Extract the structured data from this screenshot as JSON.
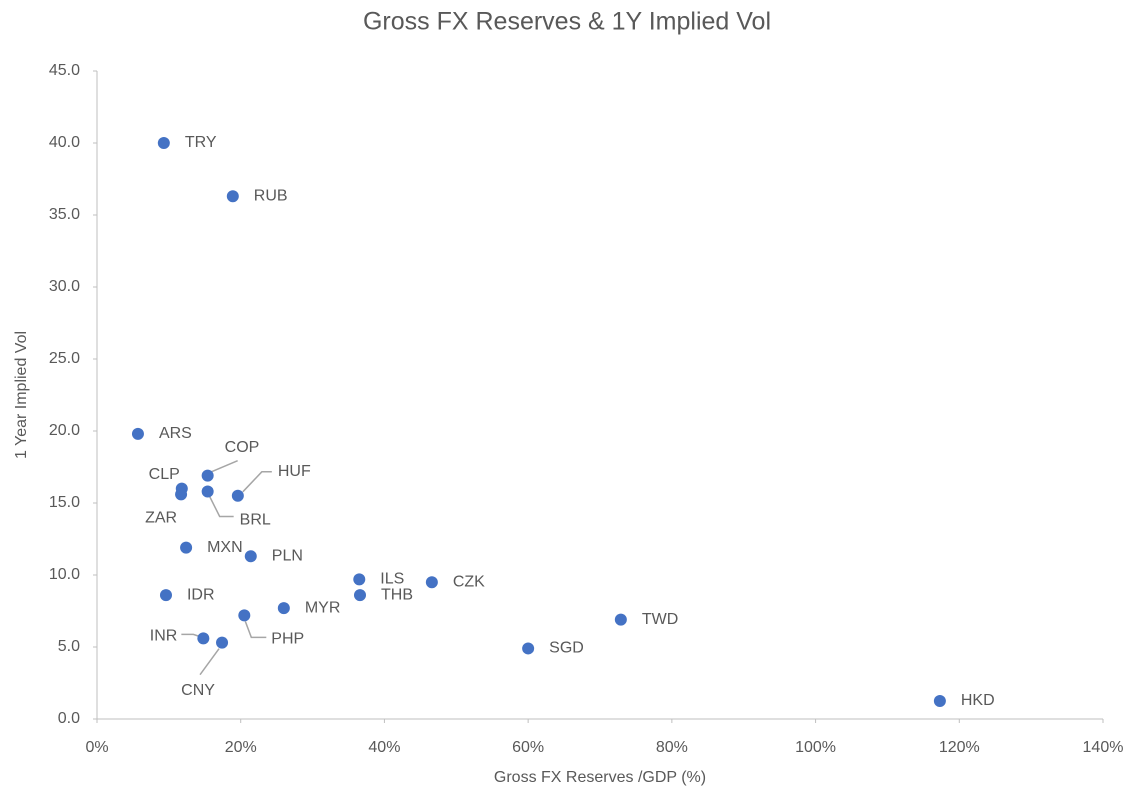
{
  "chart_data": {
    "type": "scatter",
    "title": "Gross FX Reserves & 1Y Implied Vol",
    "x_label": "Gross FX Reserves  /GDP (%)",
    "y_label": "1 Year Implied Vol",
    "color": "#4472c4",
    "labels": [
      "TRY",
      "RUB",
      "ARS",
      "COP",
      "CLP",
      "ZAR",
      "BRL",
      "HUF",
      "MXN",
      "PLN",
      "ILS",
      "CZK",
      "THB",
      "IDR",
      "MYR",
      "PHP",
      "TWD",
      "INR",
      "CNY",
      "SGD",
      "HKD"
    ],
    "x": [
      9.3,
      18.9,
      5.7,
      15.4,
      11.8,
      11.7,
      15.4,
      19.6,
      12.4,
      21.4,
      36.5,
      46.6,
      36.6,
      9.6,
      26.0,
      20.5,
      72.9,
      14.8,
      17.4,
      60.0,
      117.3
    ],
    "values": [
      40.0,
      36.3,
      19.8,
      16.9,
      16.0,
      15.6,
      15.8,
      15.5,
      11.9,
      11.3,
      9.7,
      9.5,
      8.6,
      8.6,
      7.7,
      7.2,
      6.9,
      5.6,
      5.3,
      4.9,
      1.25
    ],
    "xlim": [
      0,
      140
    ],
    "xticks": [
      {
        "value": 0,
        "label": "0%"
      },
      {
        "value": 20,
        "label": "20%"
      },
      {
        "value": 40,
        "label": "40%"
      },
      {
        "value": 60,
        "label": "60%"
      },
      {
        "value": 80,
        "label": "80%"
      },
      {
        "value": 100,
        "label": "100%"
      },
      {
        "value": 120,
        "label": "120%"
      },
      {
        "value": 140,
        "label": "140%"
      }
    ],
    "ylim": [
      0,
      45
    ],
    "yticks": [
      {
        "value": 0,
        "label": "0.0"
      },
      {
        "value": 5,
        "label": "5.0"
      },
      {
        "value": 10,
        "label": "10.0"
      },
      {
        "value": 15,
        "label": "15.0"
      },
      {
        "value": 20,
        "label": "20.0"
      },
      {
        "value": 25,
        "label": "25.0"
      },
      {
        "value": 30,
        "label": "30.0"
      },
      {
        "value": 35,
        "label": "35.0"
      },
      {
        "value": 40,
        "label": "40.0"
      },
      {
        "value": 45,
        "label": "45.0"
      }
    ],
    "grid": false
  }
}
